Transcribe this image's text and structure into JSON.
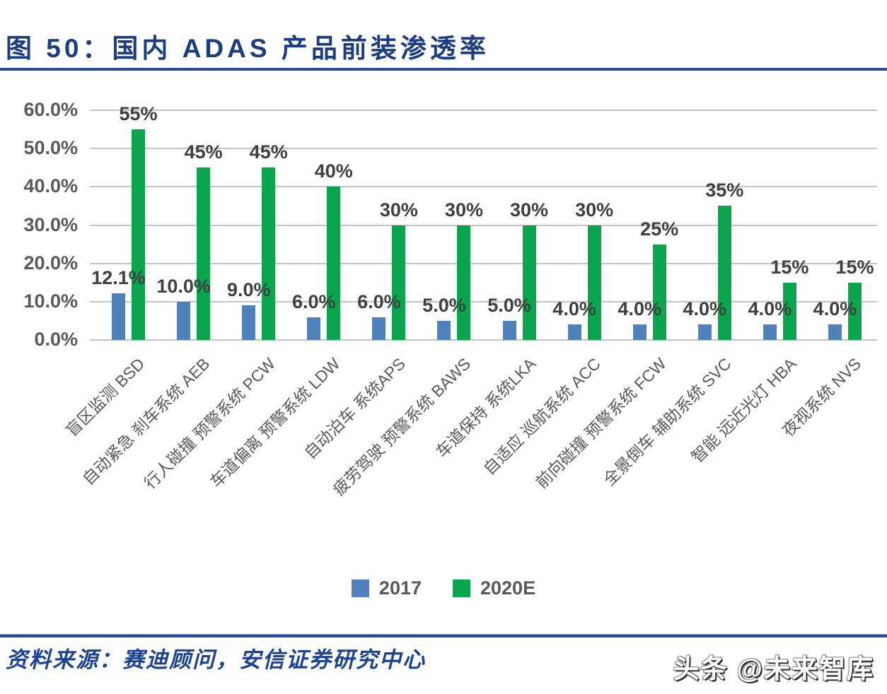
{
  "figure": {
    "title": "图 50：国内 ADAS 产品前装渗透率",
    "source": "资料来源：赛迪顾问，安信证券研究中心",
    "watermark": "头条 @未来智库"
  },
  "colors": {
    "title_blue": "#1b3c7e",
    "rule_blue": "#2a4a9c",
    "bar_2017_blue": "#4f81bd",
    "bar_2020_green": "#0aa64d",
    "axis_text_gray": "#595959",
    "data_label_gray": "#3f3f3f",
    "gridline_gray": "#c3c3c3"
  },
  "chart_data": {
    "type": "bar",
    "title": "国内 ADAS 产品前装渗透率",
    "categories": [
      "盲区监测 BSD",
      "自动紧急 刹车系统 AEB",
      "行人碰撞 预警系统 PCW",
      "车道偏离 预警系统 LDW",
      "自动泊车 系统APS",
      "疲劳驾驶 预警系统 BAWS",
      "车道保持 系统LKA",
      "自适应 巡航系统 ACC",
      "前向碰撞 预警系统 FCW",
      "全景倒车 辅助系统 SVC",
      "智能 远近光灯 HBA",
      "夜视系统 NVS"
    ],
    "series": [
      {
        "name": "2017",
        "color": "#4f81bd",
        "values": [
          12.1,
          10.0,
          9.0,
          6.0,
          6.0,
          5.0,
          5.0,
          4.0,
          4.0,
          4.0,
          4.0,
          4.0
        ],
        "labels": [
          "12.1%",
          "10.0%",
          "9.0%",
          "6.0%",
          "6.0%",
          "5.0%",
          "5.0%",
          "4.0%",
          "4.0%",
          "4.0%",
          "4.0%",
          "4.0%"
        ]
      },
      {
        "name": "2020E",
        "color": "#0aa64d",
        "values": [
          55,
          45,
          45,
          40,
          30,
          30,
          30,
          30,
          25,
          35,
          15,
          15
        ],
        "labels": [
          "55%",
          "45%",
          "45%",
          "40%",
          "30%",
          "30%",
          "30%",
          "30%",
          "25%",
          "35%",
          "15%",
          "15%"
        ]
      }
    ],
    "y_axis": {
      "min": 0,
      "max": 60,
      "step": 10,
      "tick_labels": [
        "0.0%",
        "10.0%",
        "20.0%",
        "30.0%",
        "40.0%",
        "50.0%",
        "60.0%"
      ]
    },
    "grid": true,
    "value_labels": true,
    "legend_position": "bottom"
  }
}
